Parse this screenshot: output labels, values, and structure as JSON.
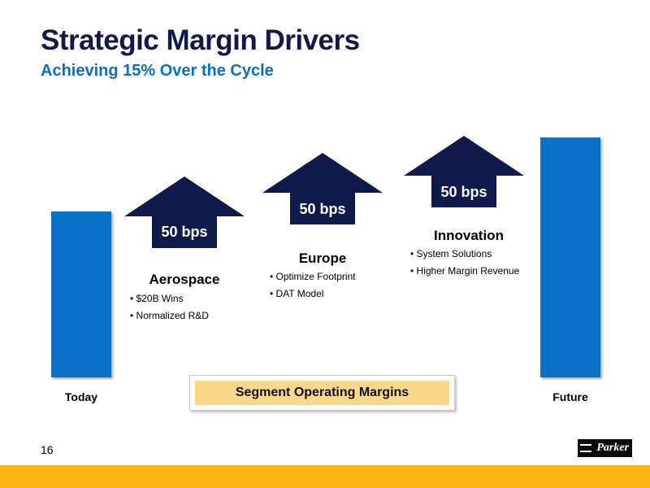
{
  "header": {
    "title": "Strategic Margin Drivers",
    "subtitle": "Achieving 15% Over the Cycle"
  },
  "bars": {
    "today_label": "Today",
    "future_label": "Future"
  },
  "drivers": [
    {
      "name": "Aerospace",
      "value": "50 bps",
      "bullets": [
        "$20B Wins",
        "Normalized R&D"
      ]
    },
    {
      "name": "Europe",
      "value": "50 bps",
      "bullets": [
        "Optimize Footprint",
        "DAT Model"
      ]
    },
    {
      "name": "Innovation",
      "value": "50 bps",
      "bullets": [
        "System Solutions",
        "Higher Margin Revenue"
      ]
    }
  ],
  "segment_label": "Segment Operating Margins",
  "footer": {
    "page_number": "16",
    "logo_text": "Parker"
  },
  "colors": {
    "title": "#0f1a4a",
    "subtitle": "#0b6fc0",
    "bar": "#0a72c8",
    "arrow": "#0f1a4a",
    "segment_fill": "#fad78a",
    "footer_band": "#fbb514"
  }
}
